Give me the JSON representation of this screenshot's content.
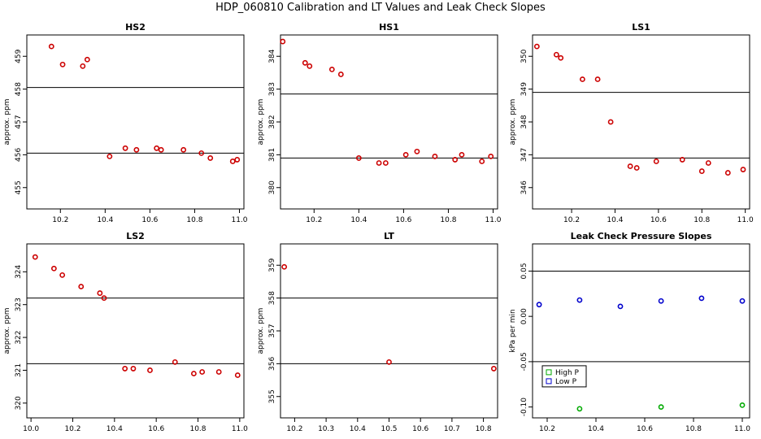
{
  "figure": {
    "title": "HDP_060810  Calibration and LT Values and Leak Check Slopes"
  },
  "colors": {
    "points": "#cc0000",
    "high_p": "#00aa00",
    "low_p": "#0000cc",
    "axis": "#000000",
    "background": "#ffffff"
  },
  "chart_data": [
    {
      "type": "scatter",
      "title": "HS2",
      "xlabel": "",
      "ylabel": "approx. ppm",
      "xlim": [
        10.05,
        11.02
      ],
      "ylim": [
        454.35,
        459.65
      ],
      "xticks": [
        10.2,
        10.4,
        10.6,
        10.8,
        11.0
      ],
      "xtick_labels": [
        "10.2",
        "10.4",
        "10.6",
        "10.8",
        "11.0"
      ],
      "yticks": [
        455,
        456,
        457,
        458,
        459
      ],
      "ytick_labels": [
        "455",
        "456",
        "457",
        "458",
        "459"
      ],
      "hlines": [
        458.05,
        456.05
      ],
      "series": [
        {
          "name": "values",
          "color": "#cc0000",
          "x": [
            10.16,
            10.21,
            10.3,
            10.32,
            10.42,
            10.49,
            10.54,
            10.63,
            10.65,
            10.75,
            10.83,
            10.87,
            10.97,
            10.99
          ],
          "y": [
            459.3,
            458.75,
            458.7,
            458.9,
            455.95,
            456.2,
            456.15,
            456.2,
            456.15,
            456.15,
            456.05,
            455.9,
            455.8,
            455.85
          ]
        }
      ]
    },
    {
      "type": "scatter",
      "title": "HS1",
      "xlabel": "",
      "ylabel": "approx. ppm",
      "xlim": [
        10.05,
        11.02
      ],
      "ylim": [
        379.35,
        384.65
      ],
      "xticks": [
        10.2,
        10.4,
        10.6,
        10.8,
        11.0
      ],
      "xtick_labels": [
        "10.2",
        "10.4",
        "10.6",
        "10.8",
        "11.0"
      ],
      "yticks": [
        380,
        381,
        382,
        383,
        384
      ],
      "ytick_labels": [
        "380",
        "381",
        "382",
        "383",
        "384"
      ],
      "hlines": [
        382.85,
        380.9
      ],
      "series": [
        {
          "name": "values",
          "color": "#cc0000",
          "x": [
            10.06,
            10.16,
            10.18,
            10.28,
            10.32,
            10.4,
            10.49,
            10.52,
            10.61,
            10.66,
            10.74,
            10.83,
            10.86,
            10.95,
            10.99
          ],
          "y": [
            384.45,
            383.8,
            383.7,
            383.6,
            383.45,
            380.9,
            380.75,
            380.75,
            381.0,
            381.1,
            380.95,
            380.85,
            381.0,
            380.8,
            380.95
          ]
        }
      ]
    },
    {
      "type": "scatter",
      "title": "LS1",
      "xlabel": "",
      "ylabel": "approx. ppm",
      "xlim": [
        10.02,
        11.02
      ],
      "ylim": [
        345.35,
        350.65
      ],
      "xticks": [
        10.2,
        10.4,
        10.6,
        10.8,
        11.0
      ],
      "xtick_labels": [
        "10.2",
        "10.4",
        "10.6",
        "10.8",
        "11.0"
      ],
      "yticks": [
        346,
        347,
        348,
        349,
        350
      ],
      "ytick_labels": [
        "346",
        "347",
        "348",
        "349",
        "350"
      ],
      "hlines": [
        348.9,
        346.9
      ],
      "series": [
        {
          "name": "values",
          "color": "#cc0000",
          "x": [
            10.04,
            10.13,
            10.15,
            10.25,
            10.32,
            10.38,
            10.47,
            10.5,
            10.59,
            10.71,
            10.8,
            10.83,
            10.92,
            10.99
          ],
          "y": [
            350.3,
            350.05,
            349.95,
            349.3,
            349.3,
            348.0,
            346.65,
            346.6,
            346.8,
            346.85,
            346.5,
            346.75,
            346.45,
            346.55
          ]
        }
      ]
    },
    {
      "type": "scatter",
      "title": "LS2",
      "xlabel": "",
      "ylabel": "approx. ppm",
      "xlim": [
        9.98,
        11.02
      ],
      "ylim": [
        319.55,
        324.85
      ],
      "xticks": [
        10.0,
        10.2,
        10.4,
        10.6,
        10.8,
        11.0
      ],
      "xtick_labels": [
        "10.0",
        "10.2",
        "10.4",
        "10.6",
        "10.8",
        "11.0"
      ],
      "yticks": [
        320,
        321,
        322,
        323,
        324
      ],
      "ytick_labels": [
        "320",
        "321",
        "322",
        "323",
        "324"
      ],
      "hlines": [
        323.2,
        321.2
      ],
      "series": [
        {
          "name": "values",
          "color": "#cc0000",
          "x": [
            10.02,
            10.11,
            10.15,
            10.24,
            10.33,
            10.35,
            10.45,
            10.49,
            10.57,
            10.69,
            10.78,
            10.82,
            10.9,
            10.99
          ],
          "y": [
            324.45,
            324.1,
            323.9,
            323.55,
            323.35,
            323.2,
            321.05,
            321.05,
            321.0,
            321.25,
            320.9,
            320.95,
            320.95,
            320.85
          ]
        }
      ]
    },
    {
      "type": "scatter",
      "title": "LT",
      "xlabel": "",
      "ylabel": "approx. ppm",
      "xlim": [
        10.155,
        10.845
      ],
      "ylim": [
        354.35,
        359.65
      ],
      "xticks": [
        10.2,
        10.3,
        10.4,
        10.5,
        10.6,
        10.7,
        10.8
      ],
      "xtick_labels": [
        "10.2",
        "10.3",
        "10.4",
        "10.5",
        "10.6",
        "10.7",
        "10.8"
      ],
      "yticks": [
        355,
        356,
        357,
        358,
        359
      ],
      "ytick_labels": [
        "355",
        "356",
        "357",
        "358",
        "359"
      ],
      "hlines": [
        358.0,
        356.0
      ],
      "series": [
        {
          "name": "values",
          "color": "#cc0000",
          "x": [
            10.167,
            10.5,
            10.833
          ],
          "y": [
            358.95,
            356.05,
            355.85
          ]
        }
      ]
    },
    {
      "type": "scatter",
      "title": "Leak Check Pressure Slopes",
      "xlabel": "",
      "ylabel": "kPa per min",
      "xlim": [
        10.14,
        11.03
      ],
      "ylim": [
        -0.112,
        0.08
      ],
      "xticks": [
        10.2,
        10.4,
        10.6,
        10.8,
        11.0
      ],
      "xtick_labels": [
        "10.2",
        "10.4",
        "10.6",
        "10.8",
        "11.0"
      ],
      "yticks": [
        -0.1,
        -0.05,
        0.0,
        0.05
      ],
      "ytick_labels": [
        "-0.10",
        "-0.05",
        "0.00",
        "0.05"
      ],
      "hlines": [
        0.05,
        -0.05
      ],
      "legend": {
        "position": "bottom-left",
        "entries": [
          "High P",
          "Low P"
        ]
      },
      "series": [
        {
          "name": "High P",
          "color": "#00aa00",
          "x": [
            10.333,
            10.667,
            11.0
          ],
          "y": [
            -0.102,
            -0.1,
            -0.098
          ]
        },
        {
          "name": "Low P",
          "color": "#0000cc",
          "x": [
            10.167,
            10.333,
            10.5,
            10.667,
            10.833,
            11.0
          ],
          "y": [
            0.013,
            0.018,
            0.011,
            0.017,
            0.02,
            0.017
          ]
        }
      ]
    }
  ]
}
